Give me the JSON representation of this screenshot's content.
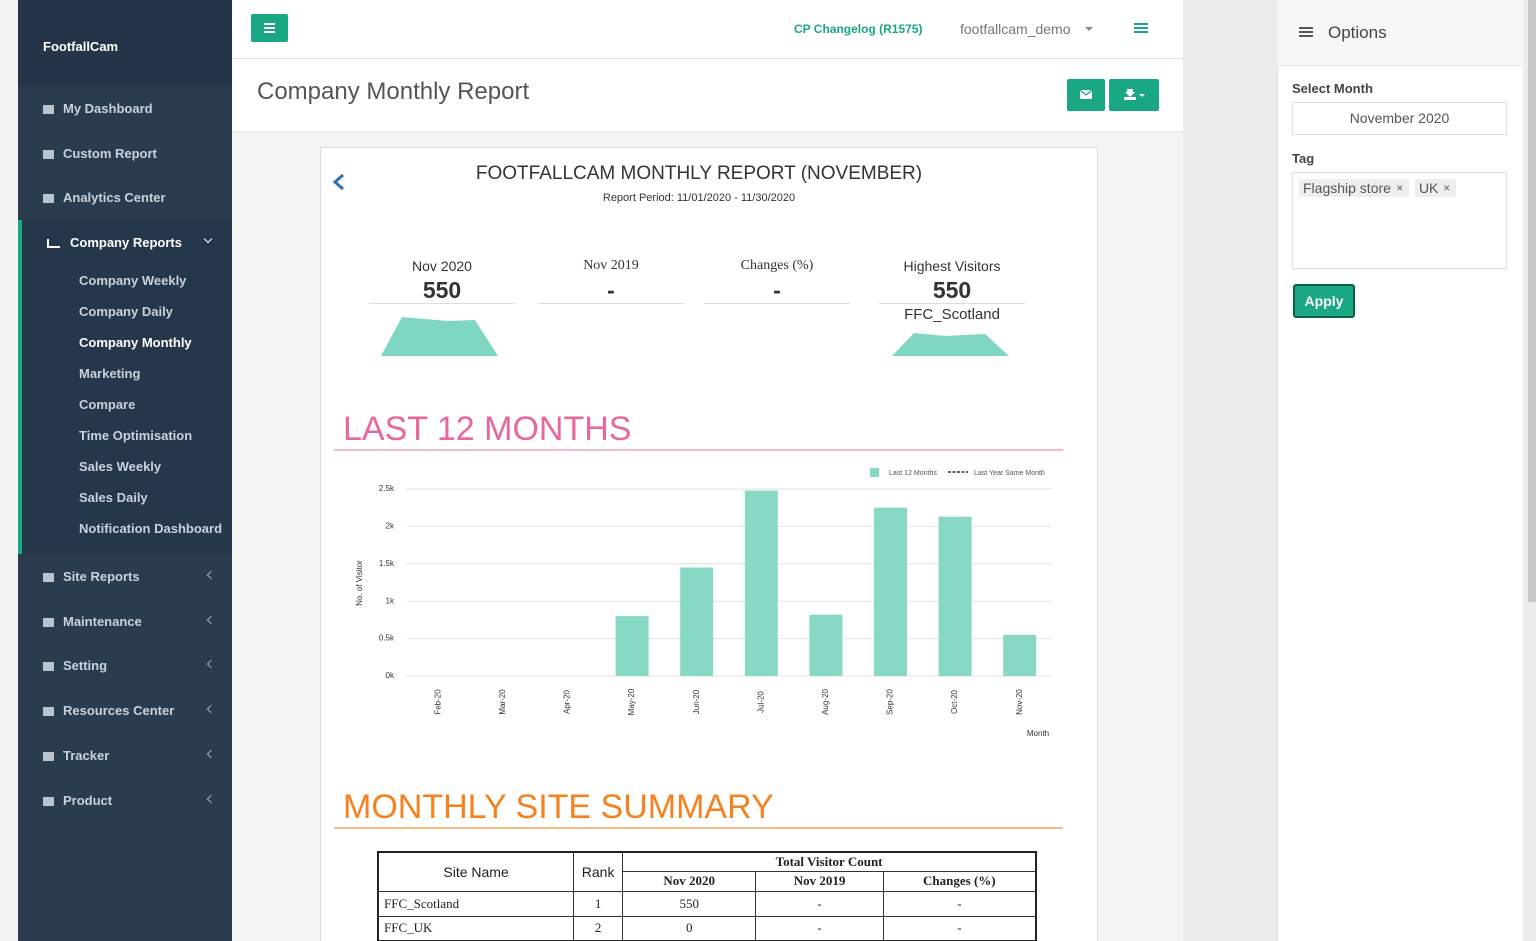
{
  "sidebar": {
    "brand": "FootfallCam",
    "menu": [
      "My Dashboard",
      "Custom Report",
      "Analytics Center"
    ],
    "active_group": {
      "label": "Company Reports",
      "items": [
        "Company Weekly",
        "Company Daily",
        "Company Monthly",
        "Marketing",
        "Compare",
        "Time Optimisation",
        "Sales Weekly",
        "Sales Daily",
        "Notification Dashboard"
      ],
      "current": "Company Monthly"
    },
    "menu_after": [
      "Site Reports",
      "Maintenance",
      "Setting",
      "Resources Center",
      "Tracker",
      "Product"
    ]
  },
  "header": {
    "changelog": "CP Changelog (R1575)",
    "user": "footfallcam_demo"
  },
  "page": {
    "title": "Company Monthly Report"
  },
  "report": {
    "title": "FOOTFALLCAM MONTHLY REPORT (NOVEMBER)",
    "period": "Report Period: 11/01/2020 - 11/30/2020",
    "kpis": [
      {
        "label": "Nov 2020",
        "value": 550
      },
      {
        "label": "Nov 2019",
        "value": "-"
      },
      {
        "label": "Changes (%)",
        "value": "-"
      },
      {
        "label": "Highest Visitors",
        "value": 550,
        "site": "FFC_Scotland"
      }
    ],
    "sections": [
      "LAST 12 MONTHS",
      "MONTHLY SITE SUMMARY"
    ],
    "chart": {
      "type": "bar",
      "x_label": "Month",
      "y_label": "No. of Visitor",
      "legend": [
        "Last 12 Months",
        "Last Year Same Month"
      ],
      "categories": [
        "Feb-20",
        "Mar-20",
        "Apr-20",
        "May-20",
        "Jun-20",
        "Jul-20",
        "Aug-20",
        "Sep-20",
        "Oct-20",
        "Nov-20"
      ],
      "values": [
        0,
        0,
        0,
        800,
        1450,
        2480,
        820,
        2250,
        2130,
        550
      ],
      "color": "#88d8c6",
      "ylim": [
        0,
        2500
      ],
      "yticks": [
        {
          "value": 0,
          "label": "0k"
        },
        {
          "value": 500,
          "label": "0.5k"
        },
        {
          "value": 1000,
          "label": "1k"
        },
        {
          "value": 1500,
          "label": "1.5k"
        },
        {
          "value": 2000,
          "label": "2k"
        },
        {
          "value": 2500,
          "label": "2.5k"
        }
      ],
      "grid": true
    },
    "table": {
      "headers": {
        "site": "Site Name",
        "rank": "Rank",
        "group": "Total Visitor Count",
        "columns": [
          "Nov 2020",
          "Nov 2019",
          "Changes (%)"
        ]
      },
      "rows": [
        [
          "FFC_Scotland",
          1,
          550,
          "-",
          "-"
        ],
        [
          "FFC_UK",
          2,
          0,
          "-",
          "-"
        ]
      ]
    }
  },
  "options": {
    "title": "Options",
    "month_label": "Select Month",
    "month": "November 2020",
    "tag_label": "Tag",
    "tags": [
      "Flagship store",
      "UK"
    ],
    "apply": "Apply"
  }
}
